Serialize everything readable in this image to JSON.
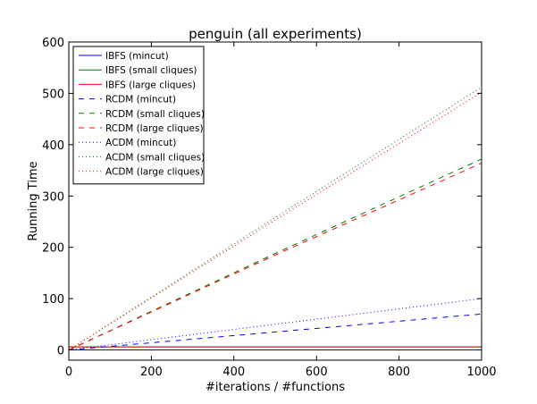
{
  "chart_data": {
    "type": "line",
    "title": "penguin (all experiments)",
    "xlabel": "#iterations / #functions",
    "ylabel": "Running Time",
    "xlim": [
      0,
      1000
    ],
    "ylim": [
      -20,
      600
    ],
    "xticks": [
      0,
      200,
      400,
      600,
      800,
      1000
    ],
    "yticks": [
      0,
      100,
      200,
      300,
      400,
      500,
      600
    ],
    "grid": false,
    "legend_position": "top-left",
    "series": [
      {
        "name": "IBFS (mincut)",
        "color": "#0000ff",
        "dash": "solid",
        "x": [
          0,
          1000
        ],
        "y": [
          0,
          0
        ]
      },
      {
        "name": "IBFS (small cliques)",
        "color": "#008000",
        "dash": "solid",
        "x": [
          0,
          1000
        ],
        "y": [
          6,
          6
        ]
      },
      {
        "name": "IBFS (large cliques)",
        "color": "#ff0000",
        "dash": "solid",
        "x": [
          0,
          1000
        ],
        "y": [
          6,
          6
        ]
      },
      {
        "name": "RCDM (mincut)",
        "color": "#0000ff",
        "dash": "dashed",
        "x": [
          0,
          500,
          1000
        ],
        "y": [
          0,
          35,
          70
        ]
      },
      {
        "name": "RCDM (small cliques)",
        "color": "#008000",
        "dash": "dashed",
        "x": [
          0,
          500,
          1000
        ],
        "y": [
          0,
          188,
          372
        ]
      },
      {
        "name": "RCDM (large cliques)",
        "color": "#ff0000",
        "dash": "dashed",
        "x": [
          0,
          500,
          1000
        ],
        "y": [
          0,
          185,
          364
        ]
      },
      {
        "name": "ACDM (mincut)",
        "color": "#0000ff",
        "dash": "dotted",
        "x": [
          0,
          500,
          1000
        ],
        "y": [
          0,
          50,
          100
        ]
      },
      {
        "name": "ACDM (small cliques)",
        "color": "#008000",
        "dash": "dotted",
        "x": [
          0,
          500,
          1000
        ],
        "y": [
          0,
          258,
          512
        ]
      },
      {
        "name": "ACDM (large cliques)",
        "color": "#ff0000",
        "dash": "dotted",
        "x": [
          0,
          500,
          1000
        ],
        "y": [
          0,
          253,
          502
        ]
      }
    ]
  }
}
